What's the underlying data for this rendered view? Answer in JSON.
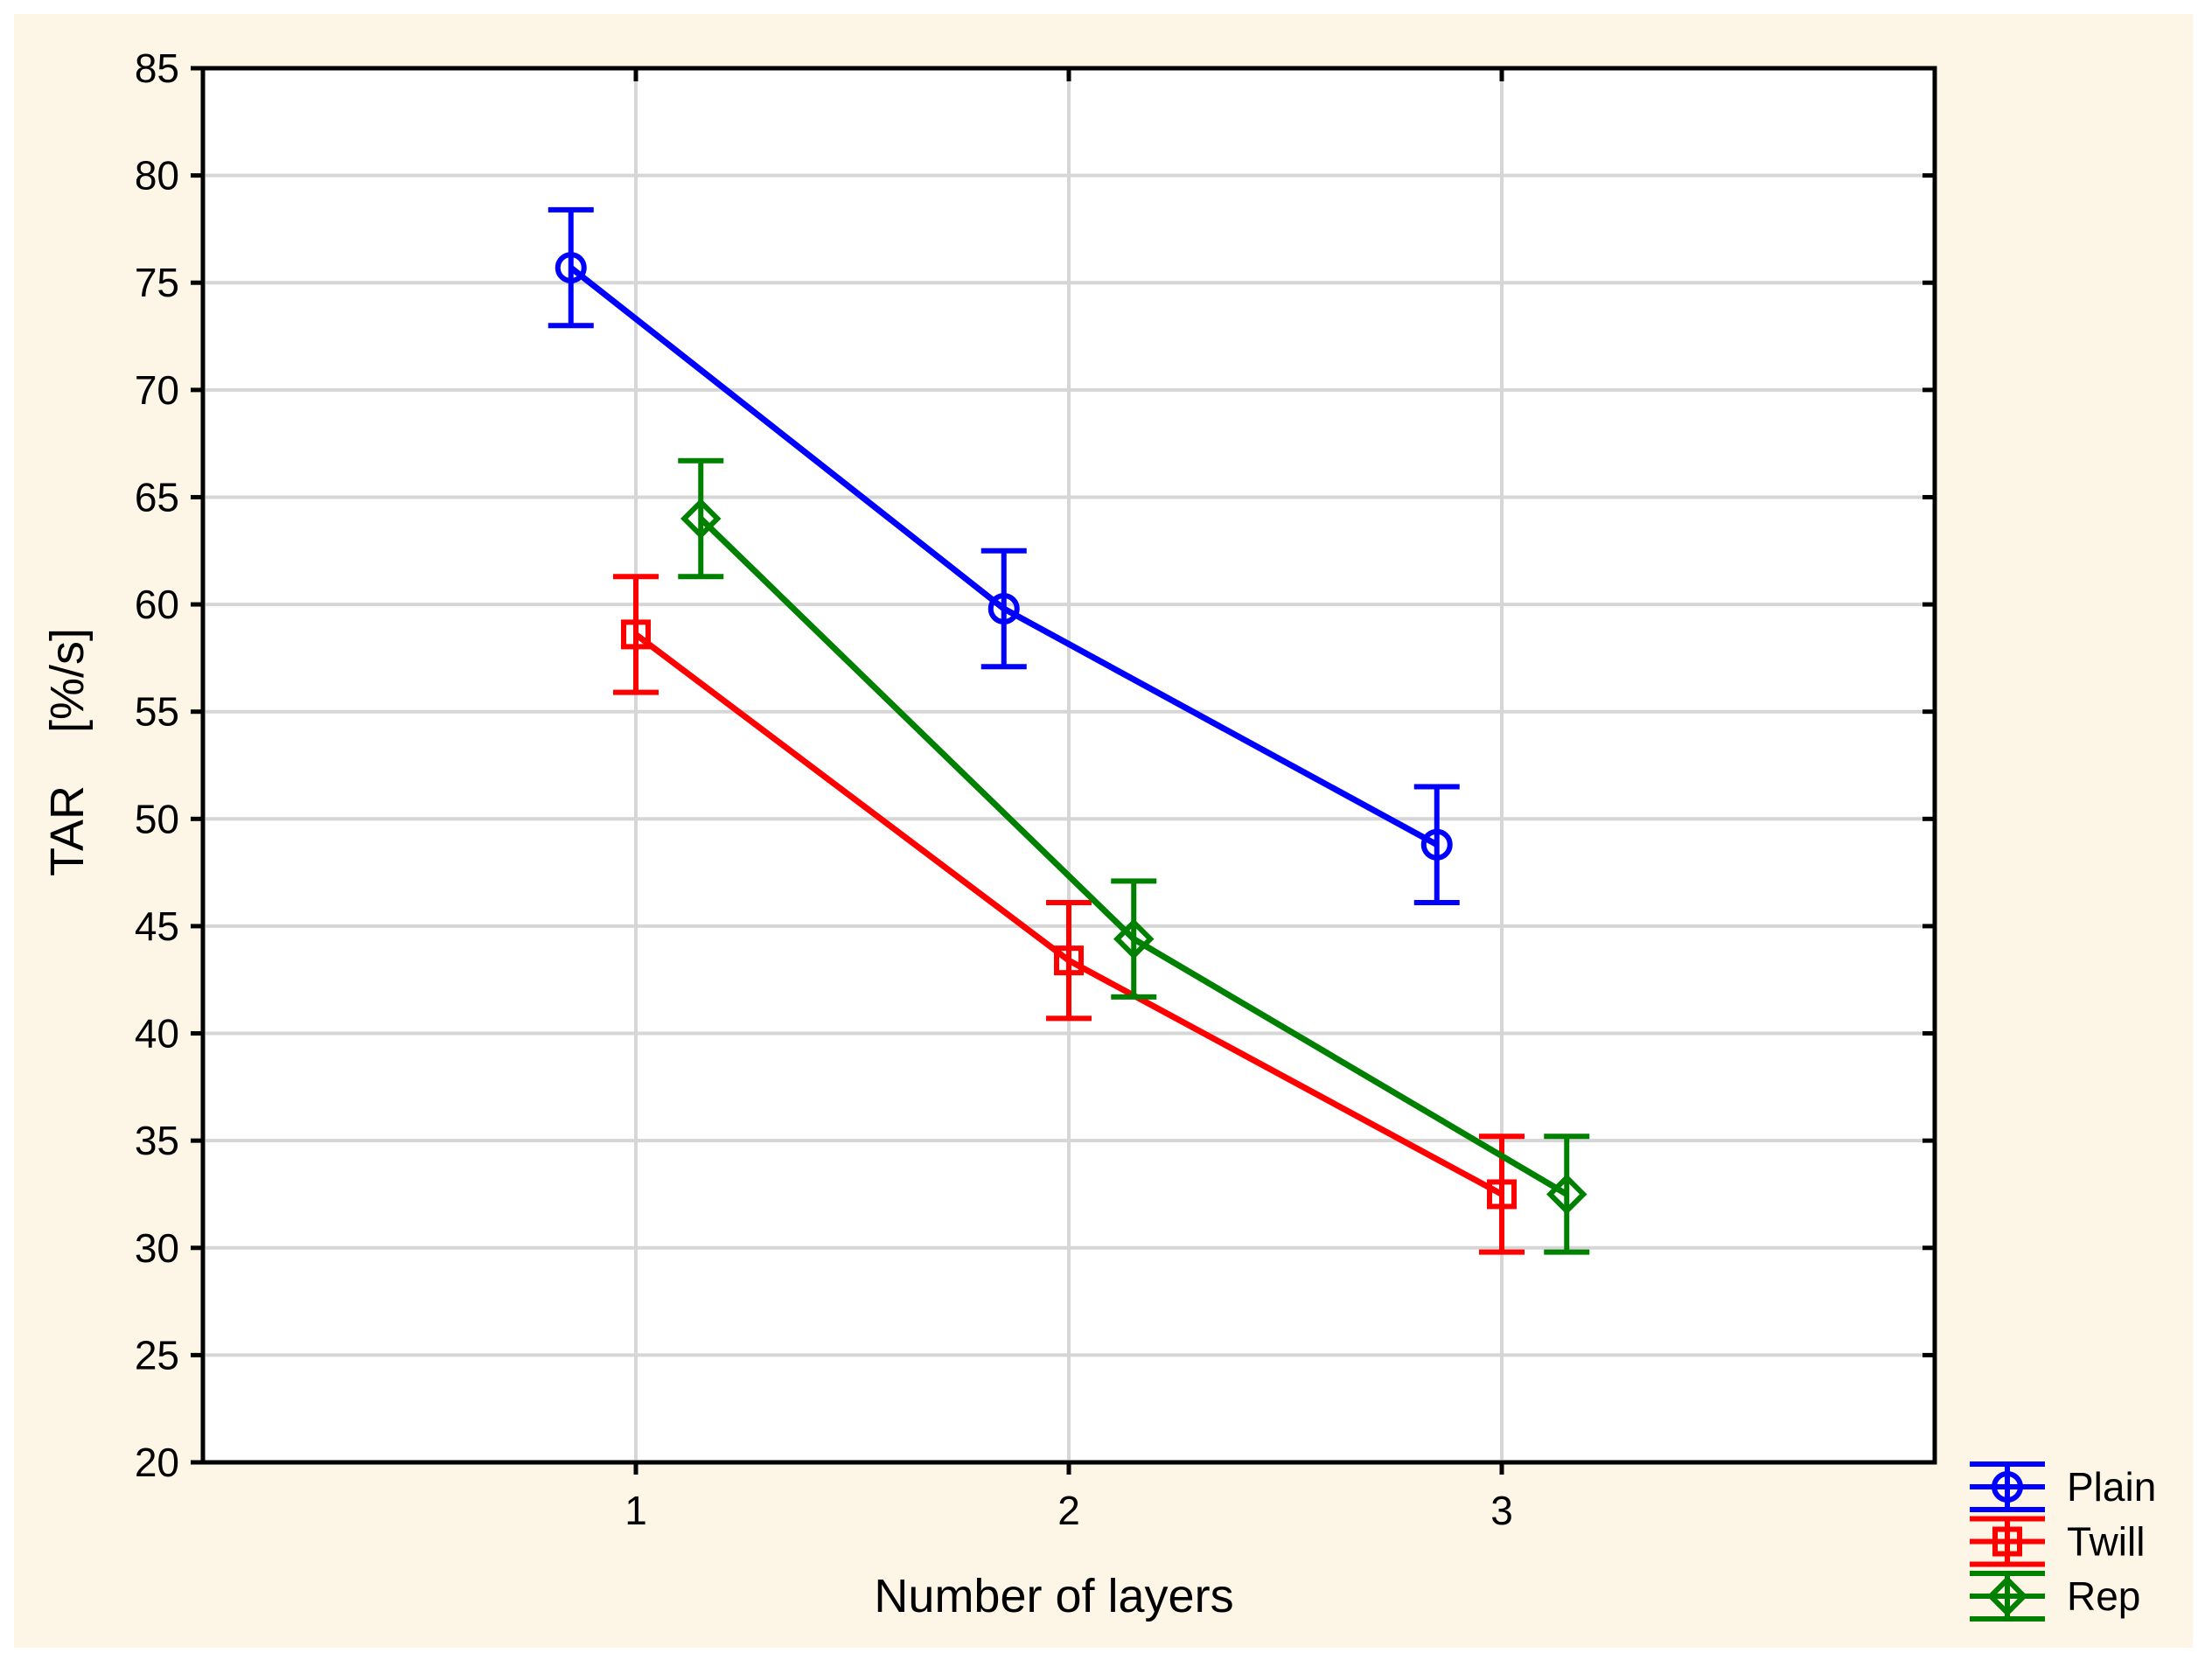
{
  "chart_data": {
    "type": "line",
    "title": "",
    "xlabel": "Number of layers",
    "ylabel": "TAR    [%/s]",
    "xlim": [
      0,
      4
    ],
    "ylim": [
      20,
      85
    ],
    "x": [
      1,
      2,
      3
    ],
    "x_ticks": [
      "1",
      "2",
      "3"
    ],
    "y_ticks": [
      20,
      25,
      30,
      35,
      40,
      45,
      50,
      55,
      60,
      65,
      70,
      75,
      80,
      85
    ],
    "grid": true,
    "legend_position": "bottom-right",
    "series": [
      {
        "name": "Plain",
        "marker": "circle",
        "color": "#0000FF",
        "x_offset": -0.15,
        "values": [
          75.7,
          59.8,
          48.8
        ],
        "errors": [
          2.7,
          2.7,
          2.7
        ]
      },
      {
        "name": "Twill",
        "marker": "square",
        "color": "#FF0000",
        "x_offset": 0,
        "values": [
          58.6,
          43.4,
          32.5
        ],
        "errors": [
          2.7,
          2.7,
          2.7
        ]
      },
      {
        "name": "Rep",
        "marker": "diamond",
        "color": "#008000",
        "x_offset": 0.15,
        "values": [
          64.0,
          44.4,
          32.5
        ],
        "errors": [
          2.7,
          2.7,
          2.7
        ]
      }
    ],
    "colors": {
      "canvas_background": "#FDF5E6",
      "plot_background": "#FFFFFF",
      "gridline": "#D6D6D6",
      "axis": "#000000"
    }
  }
}
